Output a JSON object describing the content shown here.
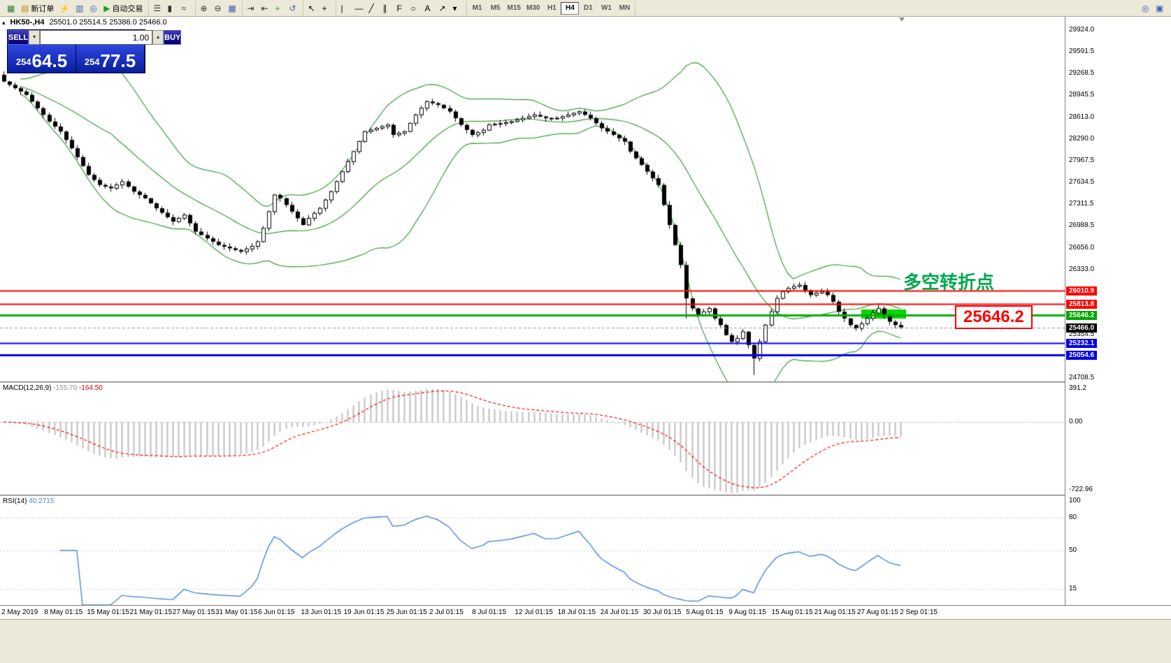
{
  "toolbar": {
    "left_groups": [
      {
        "items": [
          {
            "name": "terminal-button",
            "glyph": "▦",
            "color": "#2f7d33"
          },
          {
            "name": "new-order-button",
            "glyph": "▤",
            "color": "#b8860b",
            "label": "新订单"
          },
          {
            "name": "profiles-button",
            "glyph": "⚡",
            "color": "#e09500"
          },
          {
            "name": "market-watch-button",
            "glyph": "▥",
            "color": "#3a62b0"
          },
          {
            "name": "navigator-button",
            "glyph": "◎",
            "color": "#3a62b0"
          },
          {
            "name": "autotrading-button",
            "glyph": "▶",
            "color": "#1fa01f",
            "label": "自动交易"
          }
        ]
      },
      {
        "items": [
          {
            "name": "bar-chart-button",
            "glyph": "☰",
            "color": "#333333"
          },
          {
            "name": "candlestick-chart-button",
            "glyph": "▮",
            "color": "#333333"
          },
          {
            "name": "line-chart-button",
            "glyph": "≈",
            "color": "#333333"
          }
        ]
      },
      {
        "items": [
          {
            "name": "zoom-in-button",
            "glyph": "⊕",
            "color": "#333333"
          },
          {
            "name": "zoom-out-button",
            "glyph": "⊖",
            "color": "#333333"
          },
          {
            "name": "tile-windows-button",
            "glyph": "▦",
            "color": "#3a62b0"
          }
        ]
      },
      {
        "items": [
          {
            "name": "auto-scroll-button",
            "glyph": "⇥",
            "color": "#333333"
          },
          {
            "name": "chart-shift-button",
            "glyph": "⇤",
            "color": "#333333"
          },
          {
            "name": "indicators-button",
            "glyph": "+",
            "color": "#1fa01f"
          },
          {
            "name": "period-refresh-button",
            "glyph": "↺",
            "color": "#3a62b0"
          }
        ]
      },
      {
        "items": [
          {
            "name": "cursor-button",
            "glyph": "↖",
            "color": "#000000"
          },
          {
            "name": "crosshair-button",
            "glyph": "+",
            "color": "#000000"
          }
        ]
      },
      {
        "items": [
          {
            "name": "vertical-line-button",
            "glyph": "|",
            "color": "#000000"
          },
          {
            "name": "horizontal-line-button",
            "glyph": "—",
            "color": "#000000"
          },
          {
            "name": "trendline-button",
            "glyph": "╱",
            "color": "#000000"
          },
          {
            "name": "channel-button",
            "glyph": "∥",
            "color": "#000000"
          },
          {
            "name": "fibonacci-button",
            "glyph": "F",
            "color": "#000000"
          },
          {
            "name": "shapes-button",
            "glyph": "○",
            "color": "#000000"
          },
          {
            "name": "text-label-button",
            "glyph": "A",
            "color": "#000000"
          },
          {
            "name": "arrows-button",
            "glyph": "↗",
            "color": "#000000"
          },
          {
            "name": "more-objects-button",
            "glyph": "▾",
            "color": "#000000"
          }
        ]
      }
    ],
    "timeframes": {
      "items": [
        "M1",
        "M5",
        "M15",
        "M30",
        "H1",
        "H4",
        "D1",
        "W1",
        "MN"
      ],
      "active": "H4"
    },
    "right_items": [
      {
        "name": "search-button",
        "glyph": "◎",
        "color": "#3a62b0"
      },
      {
        "name": "window-list-button",
        "glyph": "▣",
        "color": "#3a62b0"
      }
    ]
  },
  "chart": {
    "collapse_arrow": "▴",
    "symbol_period": "HK50-,H4",
    "ohlc": "25501.0 25514.5 25386.0 25466.0"
  },
  "trade_panel": {
    "sell_label": "SELL",
    "buy_label": "BUY",
    "volume": "1.00",
    "vol_down_glyph": "▼",
    "vol_up_glyph": "▲",
    "sell_small": "254",
    "sell_big": "64.5",
    "buy_small": "254",
    "buy_big": "77.5"
  },
  "annotations": {
    "turning_point": "多空转折点",
    "price_callout": "25646.2"
  },
  "price_axis": {
    "plain_labels": [
      "29924.0",
      "29591.5",
      "29268.5",
      "28945.5",
      "28613.0",
      "28290.0",
      "27967.5",
      "27634.5",
      "27311.5",
      "26988.5",
      "26656.0",
      "26333.0",
      "25354.5",
      "24708.5"
    ],
    "current_price": {
      "value": 25466.0,
      "label": "25466.0",
      "bg": "#000000"
    }
  },
  "levels": [
    {
      "value": 26010.9,
      "color": "#ff0000",
      "width": 2,
      "tag_bg": "#ff0000"
    },
    {
      "value": 25813.8,
      "color": "#ff0000",
      "width": 2,
      "tag_bg": "#ff0000"
    },
    {
      "value": 25646.2,
      "color": "#00b000",
      "width": 3,
      "tag_bg": "#00a800"
    },
    {
      "value": 25232.1,
      "color": "#0000ff",
      "width": 2,
      "tag_bg": "#0000e0"
    },
    {
      "value": 25054.6,
      "color": "#0000ff",
      "width": 3,
      "tag_bg": "#0000e0"
    }
  ],
  "macd": {
    "label": "MACD(12,26,9)",
    "value1": "-155.70",
    "value2": "-164.50",
    "axis": [
      "391.2",
      "0.00",
      "-722.96"
    ],
    "hist_color": "#bdbdbd",
    "signal_color": "#ff0000"
  },
  "rsi": {
    "label": "RSI(14)",
    "value": "40.2715",
    "axis": [
      "100",
      "80",
      "50",
      "15"
    ],
    "color": "#4a86d8"
  },
  "time_axis": {
    "labels": [
      "2 May 2019",
      "8 May 01:15",
      "15 May 01:15",
      "21 May 01:15",
      "27 May 01:15",
      "31 May 01:15",
      "6 Jun 01:15",
      "13 Jun 01:15",
      "19 Jun 01:15",
      "25 Jun 01:15",
      "2 Jul 01:15",
      "8 Jul 01:15",
      "12 Jul 01:15",
      "18 Jul 01:15",
      "24 Jul 01:15",
      "30 Jul 01:15",
      "5 Aug 01:15",
      "9 Aug 01:15",
      "15 Aug 01:15",
      "21 Aug 01:15",
      "27 Aug 01:15",
      "2 Sep 01:15"
    ]
  },
  "chart_data": {
    "type": "candlestick",
    "symbol": "HK50-",
    "timeframe": "H4",
    "price_axis": {
      "max": 30120,
      "min": 24655
    },
    "bollinger": {
      "period": 20,
      "deviation": 2,
      "color": "#3c9e3c"
    },
    "candles": {
      "count": 160,
      "first_open": 29250,
      "close_anchors": [
        [
          0,
          29150
        ],
        [
          2,
          29050
        ],
        [
          4,
          28950
        ],
        [
          6,
          28750
        ],
        [
          8,
          28550
        ],
        [
          10,
          28400
        ],
        [
          12,
          28150
        ],
        [
          15,
          27750
        ],
        [
          17,
          27600
        ],
        [
          19,
          27550
        ],
        [
          21,
          27650
        ],
        [
          23,
          27500
        ],
        [
          25,
          27400
        ],
        [
          27,
          27250
        ],
        [
          30,
          27050
        ],
        [
          32,
          27150
        ],
        [
          34,
          26900
        ],
        [
          36,
          26800
        ],
        [
          38,
          26700
        ],
        [
          40,
          26650
        ],
        [
          42,
          26600
        ],
        [
          44,
          26680
        ],
        [
          45,
          26750
        ],
        [
          46,
          26950
        ],
        [
          47,
          27200
        ],
        [
          48,
          27450
        ],
        [
          49,
          27400
        ],
        [
          51,
          27200
        ],
        [
          53,
          27000
        ],
        [
          54,
          27100
        ],
        [
          56,
          27250
        ],
        [
          58,
          27500
        ],
        [
          60,
          27800
        ],
        [
          62,
          28100
        ],
        [
          64,
          28400
        ],
        [
          66,
          28450
        ],
        [
          68,
          28500
        ],
        [
          69,
          28350
        ],
        [
          71,
          28400
        ],
        [
          73,
          28650
        ],
        [
          75,
          28850
        ],
        [
          77,
          28800
        ],
        [
          79,
          28700
        ],
        [
          81,
          28500
        ],
        [
          83,
          28350
        ],
        [
          85,
          28420
        ],
        [
          86,
          28500
        ],
        [
          88,
          28520
        ],
        [
          90,
          28550
        ],
        [
          92,
          28600
        ],
        [
          94,
          28650
        ],
        [
          96,
          28600
        ],
        [
          98,
          28600
        ],
        [
          100,
          28650
        ],
        [
          102,
          28700
        ],
        [
          104,
          28600
        ],
        [
          106,
          28450
        ],
        [
          108,
          28350
        ],
        [
          110,
          28250
        ],
        [
          111,
          28100
        ],
        [
          113,
          27900
        ],
        [
          115,
          27700
        ],
        [
          116,
          27600
        ],
        [
          117,
          27300
        ],
        [
          118,
          27000
        ],
        [
          119,
          26700
        ],
        [
          120,
          26400
        ],
        [
          121,
          25900
        ],
        [
          122,
          25750
        ],
        [
          123,
          25650
        ],
        [
          124,
          25700
        ],
        [
          125,
          25750
        ],
        [
          126,
          25600
        ],
        [
          127,
          25500
        ],
        [
          128,
          25350
        ],
        [
          129,
          25250
        ],
        [
          130,
          25300
        ],
        [
          131,
          25400
        ],
        [
          132,
          25200
        ],
        [
          133,
          25000
        ],
        [
          134,
          25250
        ],
        [
          135,
          25500
        ],
        [
          136,
          25700
        ],
        [
          137,
          25900
        ],
        [
          138,
          26000
        ],
        [
          139,
          26050
        ],
        [
          140,
          26080
        ],
        [
          141,
          26100
        ],
        [
          142,
          26020
        ],
        [
          143,
          25950
        ],
        [
          144,
          25980
        ],
        [
          145,
          26000
        ],
        [
          146,
          25950
        ],
        [
          147,
          25850
        ],
        [
          148,
          25700
        ],
        [
          149,
          25600
        ],
        [
          150,
          25500
        ],
        [
          151,
          25450
        ],
        [
          152,
          25520
        ],
        [
          153,
          25600
        ],
        [
          154,
          25680
        ],
        [
          155,
          25750
        ],
        [
          156,
          25650
        ],
        [
          157,
          25550
        ],
        [
          158,
          25500
        ],
        [
          159,
          25466
        ]
      ],
      "special_lows": [
        [
          121,
          25600
        ],
        [
          133,
          24750
        ]
      ]
    }
  }
}
